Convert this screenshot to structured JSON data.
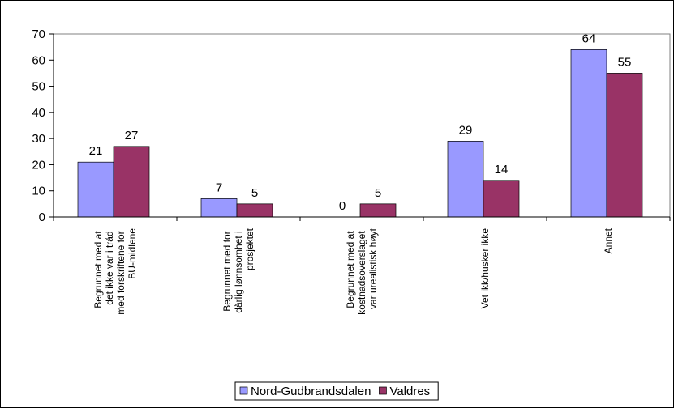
{
  "chart_data": {
    "type": "bar",
    "categories": [
      "Begrunnet med at det ikke var i tråd med forskriftene for BU-midlene",
      "Begrunnet med for dårlig lønnsomhet i prosjektet",
      "Begrunnet med at kostnadsoverslaget var urealistisk høyt",
      "Vet ikk/husker ikke",
      "Annet"
    ],
    "series": [
      {
        "name": "Nord-Gudbrandsdalen",
        "color": "#9999ff",
        "values": [
          21,
          7,
          0,
          29,
          64
        ]
      },
      {
        "name": "Valdres",
        "color": "#993366",
        "values": [
          27,
          5,
          5,
          14,
          55
        ]
      }
    ],
    "ylim": [
      0,
      70
    ],
    "yticks": [
      0,
      10,
      20,
      30,
      40,
      50,
      60,
      70
    ],
    "legend": "bottom"
  }
}
